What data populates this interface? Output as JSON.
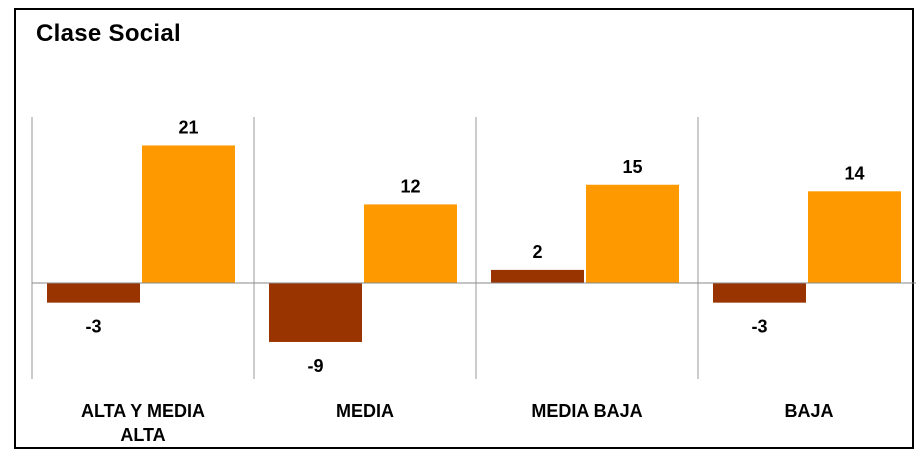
{
  "chart_data": {
    "type": "bar",
    "title": "Clase Social",
    "categories": [
      "ALTA Y MEDIA ALTA",
      "MEDIA",
      "MEDIA BAJA",
      "BAJA"
    ],
    "series": [
      {
        "values": [
          -3,
          -9,
          2,
          -3
        ],
        "color": "#993300"
      },
      {
        "values": [
          21,
          12,
          15,
          14
        ],
        "color": "#ff9900"
      }
    ],
    "ylim": [
      -15,
      25
    ],
    "grid": false,
    "legend": "none"
  }
}
